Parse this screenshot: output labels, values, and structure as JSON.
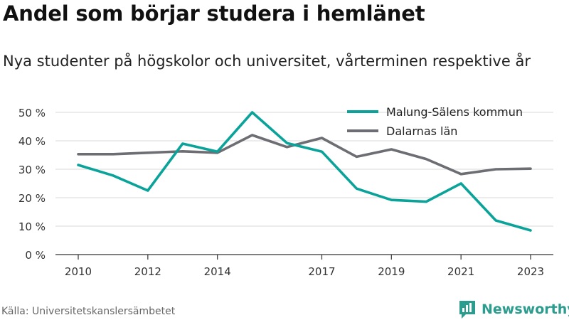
{
  "header": {
    "title": "Andel som börjar studera i hemlänet",
    "subtitle": "Nya studenter på högskolor och universitet, vårterminen respektive år"
  },
  "footer": {
    "source": "Källa: Universitetskanslersämbetet",
    "brand": "Newsworthy",
    "brand_icon": "bar-chart-speech-icon"
  },
  "colors": {
    "malung": "#0aa39a",
    "dalarna": "#6d6e73",
    "grid": "#d9d9d9",
    "axis": "#333333",
    "brand": "#2a9d8f"
  },
  "chart_data": {
    "type": "line",
    "x": [
      2010,
      2011,
      2012,
      2013,
      2014,
      2015,
      2016,
      2017,
      2018,
      2019,
      2020,
      2021,
      2022,
      2023
    ],
    "x_tick_values": [
      2010,
      2012,
      2014,
      2017,
      2019,
      2021,
      2023
    ],
    "x_tick_labels": [
      "2010",
      "2012",
      "2014",
      "2017",
      "2019",
      "2021",
      "2023"
    ],
    "y_tick_values": [
      0,
      10,
      20,
      30,
      40,
      50
    ],
    "y_tick_labels": [
      "0 %",
      "10 %",
      "20 %",
      "30 %",
      "40 %",
      "50 %"
    ],
    "ylim": [
      0,
      50
    ],
    "xlim": [
      2010,
      2023
    ],
    "grid": true,
    "legend_position": "top-right",
    "series": [
      {
        "name": "Malung-Sälens kommun",
        "color": "#0aa39a",
        "values": [
          31.5,
          27.8,
          22.5,
          39.0,
          36.2,
          50.0,
          39.2,
          36.2,
          23.2,
          19.2,
          18.6,
          25.0,
          12.0,
          8.5
        ]
      },
      {
        "name": "Dalarnas län",
        "color": "#6d6e73",
        "values": [
          35.3,
          35.3,
          35.8,
          36.3,
          35.8,
          42.0,
          37.8,
          41.0,
          34.4,
          37.0,
          33.6,
          28.3,
          30.0,
          30.2
        ]
      }
    ]
  }
}
